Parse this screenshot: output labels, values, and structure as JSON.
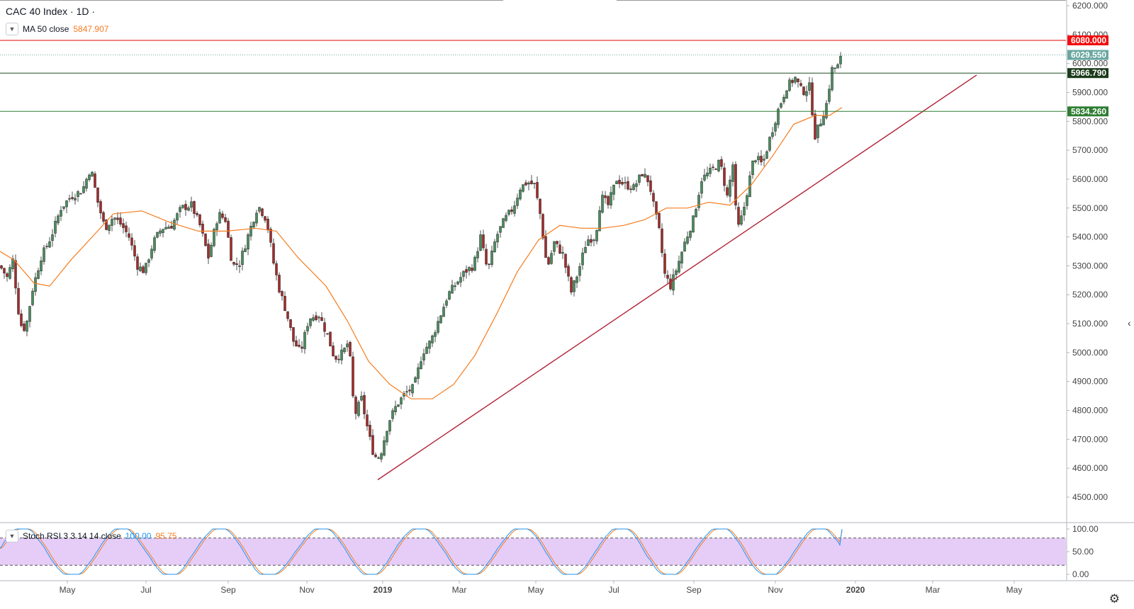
{
  "header": {
    "title": "CAC 40 Index · 1D ·",
    "ma_label": "MA 50 close",
    "ma_value": "5847.907"
  },
  "indicator": {
    "label": "Stoch RSI 3 3 14 14 close",
    "k_value": "100.00",
    "d_value": "95.75"
  },
  "colors": {
    "up": "#26a69a",
    "down": "#ef5350",
    "candle_up": "#4a8d5e",
    "candle_down": "#a52a2a",
    "ma": "#f57c1f",
    "trendline": "#b22234",
    "resistance": "#e53935",
    "support": "#2e7d32",
    "last_price": "#6aa7a0",
    "stoch_k": "#2196f3",
    "stoch_d": "#f57c1f",
    "stoch_band": "#e1c4f7"
  },
  "icons": {
    "settings": "gear-icon",
    "toggle": "chevron-down-icon"
  },
  "chart_data": {
    "type": "candlestick",
    "title": "CAC 40 Index · 1D ·",
    "x_labels": [
      "May",
      "Jul",
      "Sep",
      "Nov",
      "2019",
      "Mar",
      "May",
      "Jul",
      "Sep",
      "Nov",
      "2020",
      "Mar",
      "May"
    ],
    "y_ticks": [
      "6200.000",
      "6100.000",
      "6000.000",
      "5900.000",
      "5800.000",
      "5700.000",
      "5600.000",
      "5500.000",
      "5400.000",
      "5300.000",
      "5200.000",
      "5100.000",
      "5000.000",
      "4900.000",
      "4800.000",
      "4700.000",
      "4600.000",
      "4500.000"
    ],
    "ylim": [
      4450,
      6240
    ],
    "price_path": [
      [
        0,
        5300
      ],
      [
        10,
        5260
      ],
      [
        18,
        5320
      ],
      [
        28,
        5100
      ],
      [
        36,
        5080
      ],
      [
        46,
        5220
      ],
      [
        58,
        5330
      ],
      [
        72,
        5400
      ],
      [
        86,
        5500
      ],
      [
        100,
        5540
      ],
      [
        116,
        5560
      ],
      [
        128,
        5640
      ],
      [
        138,
        5520
      ],
      [
        148,
        5430
      ],
      [
        160,
        5470
      ],
      [
        172,
        5440
      ],
      [
        182,
        5400
      ],
      [
        194,
        5300
      ],
      [
        204,
        5280
      ],
      [
        216,
        5380
      ],
      [
        228,
        5430
      ],
      [
        242,
        5440
      ],
      [
        256,
        5500
      ],
      [
        270,
        5510
      ],
      [
        282,
        5440
      ],
      [
        294,
        5330
      ],
      [
        308,
        5480
      ],
      [
        318,
        5460
      ],
      [
        328,
        5300
      ],
      [
        338,
        5310
      ],
      [
        352,
        5420
      ],
      [
        364,
        5510
      ],
      [
        376,
        5460
      ],
      [
        386,
        5310
      ],
      [
        394,
        5220
      ],
      [
        404,
        5140
      ],
      [
        414,
        5040
      ],
      [
        424,
        5000
      ],
      [
        436,
        5120
      ],
      [
        450,
        5130
      ],
      [
        462,
        5060
      ],
      [
        472,
        4980
      ],
      [
        484,
        5000
      ],
      [
        492,
        5040
      ],
      [
        500,
        4780
      ],
      [
        510,
        4840
      ],
      [
        520,
        4720
      ],
      [
        528,
        4640
      ],
      [
        536,
        4640
      ],
      [
        548,
        4760
      ],
      [
        560,
        4820
      ],
      [
        572,
        4860
      ],
      [
        584,
        4880
      ],
      [
        596,
        5000
      ],
      [
        608,
        5040
      ],
      [
        620,
        5120
      ],
      [
        632,
        5200
      ],
      [
        644,
        5240
      ],
      [
        656,
        5280
      ],
      [
        668,
        5300
      ],
      [
        678,
        5400
      ],
      [
        688,
        5280
      ],
      [
        700,
        5400
      ],
      [
        712,
        5460
      ],
      [
        724,
        5500
      ],
      [
        734,
        5570
      ],
      [
        744,
        5590
      ],
      [
        754,
        5580
      ],
      [
        762,
        5480
      ],
      [
        772,
        5290
      ],
      [
        782,
        5380
      ],
      [
        794,
        5340
      ],
      [
        806,
        5210
      ],
      [
        816,
        5280
      ],
      [
        828,
        5390
      ],
      [
        840,
        5400
      ],
      [
        848,
        5540
      ],
      [
        858,
        5510
      ],
      [
        870,
        5600
      ],
      [
        882,
        5580
      ],
      [
        894,
        5570
      ],
      [
        906,
        5620
      ],
      [
        916,
        5590
      ],
      [
        922,
        5510
      ],
      [
        930,
        5420
      ],
      [
        938,
        5270
      ],
      [
        946,
        5230
      ],
      [
        956,
        5300
      ],
      [
        966,
        5380
      ],
      [
        978,
        5460
      ],
      [
        990,
        5600
      ],
      [
        1004,
        5630
      ],
      [
        1016,
        5660
      ],
      [
        1026,
        5540
      ],
      [
        1034,
        5650
      ],
      [
        1040,
        5420
      ],
      [
        1048,
        5480
      ],
      [
        1056,
        5580
      ],
      [
        1064,
        5680
      ],
      [
        1076,
        5650
      ],
      [
        1086,
        5740
      ],
      [
        1098,
        5840
      ],
      [
        1110,
        5920
      ],
      [
        1122,
        5950
      ],
      [
        1132,
        5900
      ],
      [
        1142,
        5920
      ],
      [
        1150,
        5750
      ],
      [
        1158,
        5800
      ],
      [
        1166,
        5860
      ],
      [
        1174,
        5980
      ],
      [
        1182,
        5990
      ],
      [
        1188,
        6029.55
      ]
    ],
    "ma50": [
      [
        0,
        5350
      ],
      [
        20,
        5320
      ],
      [
        48,
        5240
      ],
      [
        70,
        5230
      ],
      [
        100,
        5320
      ],
      [
        130,
        5400
      ],
      [
        160,
        5480
      ],
      [
        200,
        5490
      ],
      [
        240,
        5450
      ],
      [
        280,
        5420
      ],
      [
        320,
        5420
      ],
      [
        360,
        5430
      ],
      [
        390,
        5420
      ],
      [
        420,
        5330
      ],
      [
        460,
        5230
      ],
      [
        490,
        5110
      ],
      [
        520,
        4970
      ],
      [
        550,
        4890
      ],
      [
        580,
        4840
      ],
      [
        610,
        4840
      ],
      [
        640,
        4890
      ],
      [
        670,
        4990
      ],
      [
        700,
        5130
      ],
      [
        730,
        5280
      ],
      [
        760,
        5390
      ],
      [
        790,
        5440
      ],
      [
        820,
        5430
      ],
      [
        850,
        5430
      ],
      [
        880,
        5440
      ],
      [
        910,
        5460
      ],
      [
        940,
        5500
      ],
      [
        970,
        5500
      ],
      [
        1000,
        5520
      ],
      [
        1030,
        5510
      ],
      [
        1060,
        5580
      ],
      [
        1090,
        5680
      ],
      [
        1120,
        5790
      ],
      [
        1150,
        5820
      ],
      [
        1170,
        5820
      ],
      [
        1188,
        5847.907
      ]
    ],
    "trendline": {
      "from": [
        533,
        4560
      ],
      "to": [
        1378,
        5960
      ]
    },
    "levels": [
      {
        "name": "resistance",
        "value": 6080.0,
        "label": "6080.000"
      },
      {
        "name": "last",
        "value": 6029.55,
        "label": "6029.550"
      },
      {
        "name": "support-1",
        "value": 5966.79,
        "label": "5966.790"
      },
      {
        "name": "support-2",
        "value": 5834.26,
        "label": "5834.260"
      }
    ],
    "stoch_rsi": {
      "ylim": [
        0,
        100
      ],
      "y_ticks": [
        "100.00",
        "50.00",
        "0.00"
      ],
      "band": [
        20,
        80
      ],
      "k_label": "100.00",
      "d_label": "95.75"
    },
    "grid": false,
    "legend": "top-left"
  }
}
